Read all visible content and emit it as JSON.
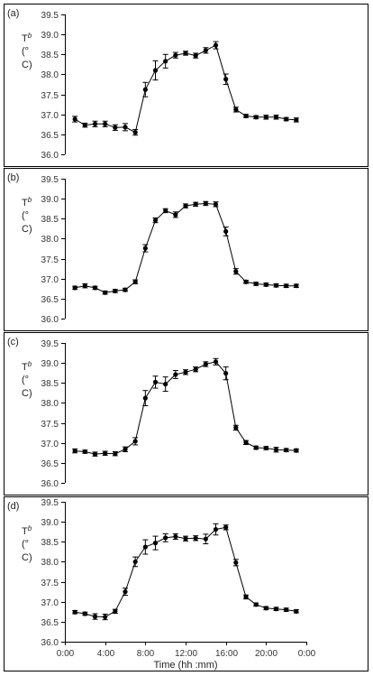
{
  "chart_data": [
    {
      "panel_label": "(a)",
      "type": "line",
      "ylabel": {
        "main": "T",
        "sub": "b",
        "unit_line1": "(°",
        "unit_line2": "C)"
      },
      "yticks": [
        "36.0",
        "36.5",
        "37.0",
        "37.5",
        "38.0",
        "38.5",
        "39.0",
        "39.5"
      ],
      "ylim": [
        36.0,
        39.5
      ],
      "series": [
        {
          "x": [
            1,
            2,
            3,
            4,
            5,
            6,
            7,
            8,
            9,
            10,
            11,
            12,
            13,
            14,
            15,
            16,
            17,
            18,
            19,
            20,
            21,
            22,
            23
          ],
          "values": [
            36.88,
            36.73,
            36.76,
            36.76,
            36.67,
            36.68,
            36.55,
            37.62,
            38.1,
            38.33,
            38.48,
            38.53,
            38.47,
            38.6,
            38.73,
            37.88,
            37.12,
            36.96,
            36.93,
            36.93,
            36.93,
            36.88,
            36.86
          ],
          "err": [
            0.07,
            0.05,
            0.07,
            0.07,
            0.07,
            0.09,
            0.07,
            0.18,
            0.24,
            0.17,
            0.07,
            0.05,
            0.06,
            0.07,
            0.09,
            0.13,
            0.06,
            0.04,
            0.04,
            0.05,
            0.05,
            0.04,
            0.05
          ]
        }
      ]
    },
    {
      "panel_label": "(b)",
      "type": "line",
      "ylabel": {
        "main": "T",
        "sub": "b",
        "unit_line1": "(°",
        "unit_line2": "C)"
      },
      "yticks": [
        "36.0",
        "36.5",
        "37.0",
        "37.5",
        "38.0",
        "38.5",
        "39.0",
        "39.5"
      ],
      "ylim": [
        36.0,
        39.5
      ],
      "series": [
        {
          "x": [
            1,
            2,
            3,
            4,
            5,
            6,
            7,
            8,
            9,
            10,
            11,
            12,
            13,
            14,
            15,
            16,
            17,
            18,
            19,
            20,
            21,
            22,
            23
          ],
          "values": [
            36.77,
            36.82,
            36.77,
            36.65,
            36.69,
            36.72,
            36.92,
            37.76,
            38.46,
            38.7,
            38.6,
            38.82,
            38.86,
            38.88,
            38.86,
            38.18,
            37.18,
            36.92,
            36.87,
            36.85,
            36.83,
            36.82,
            36.82
          ],
          "err": [
            0.04,
            0.05,
            0.04,
            0.04,
            0.04,
            0.04,
            0.05,
            0.09,
            0.06,
            0.05,
            0.07,
            0.05,
            0.05,
            0.05,
            0.06,
            0.11,
            0.07,
            0.04,
            0.04,
            0.04,
            0.04,
            0.04,
            0.04
          ]
        }
      ]
    },
    {
      "panel_label": "(c)",
      "type": "line",
      "ylabel": {
        "main": "T",
        "sub": "b",
        "unit_line1": "(°",
        "unit_line2": "C)"
      },
      "yticks": [
        "36.0",
        "36.5",
        "37.0",
        "37.5",
        "38.0",
        "38.5",
        "39.0",
        "39.5"
      ],
      "ylim": [
        36.0,
        39.5
      ],
      "series": [
        {
          "x": [
            1,
            2,
            3,
            4,
            5,
            6,
            7,
            8,
            9,
            10,
            11,
            12,
            13,
            14,
            15,
            16,
            17,
            18,
            19,
            20,
            21,
            22,
            23
          ],
          "values": [
            36.8,
            36.78,
            36.72,
            36.74,
            36.73,
            36.84,
            37.04,
            38.12,
            38.52,
            38.47,
            38.71,
            38.77,
            38.84,
            38.97,
            39.03,
            38.74,
            37.38,
            37.01,
            36.88,
            36.87,
            36.83,
            36.82,
            36.81
          ],
          "err": [
            0.05,
            0.04,
            0.05,
            0.05,
            0.05,
            0.06,
            0.09,
            0.19,
            0.15,
            0.18,
            0.1,
            0.06,
            0.06,
            0.06,
            0.08,
            0.16,
            0.06,
            0.05,
            0.04,
            0.04,
            0.06,
            0.04,
            0.04
          ]
        }
      ]
    },
    {
      "panel_label": "(d)",
      "type": "line",
      "ylabel": {
        "main": "T",
        "sub": "b",
        "unit_line1": "(°",
        "unit_line2": "C)"
      },
      "yticks": [
        "36.0",
        "36.5",
        "37.0",
        "37.5",
        "38.0",
        "38.5",
        "39.0",
        "39.5"
      ],
      "ylim": [
        36.0,
        39.5
      ],
      "xlabel": "Time (hh :mm)",
      "xticks": [
        {
          "pos": 0,
          "label": "0:00"
        },
        {
          "pos": 4,
          "label": "4:00"
        },
        {
          "pos": 8,
          "label": "8:00"
        },
        {
          "pos": 12,
          "label": "12:00"
        },
        {
          "pos": 16,
          "label": "16:00"
        },
        {
          "pos": 20,
          "label": "20:00"
        },
        {
          "pos": 24,
          "label": "0:00"
        }
      ],
      "series": [
        {
          "x": [
            1,
            2,
            3,
            4,
            5,
            6,
            7,
            8,
            9,
            10,
            11,
            12,
            13,
            14,
            15,
            16,
            17,
            18,
            19,
            20,
            21,
            22,
            23
          ],
          "values": [
            36.74,
            36.7,
            36.63,
            36.62,
            36.76,
            37.25,
            38.0,
            38.37,
            38.47,
            38.6,
            38.63,
            38.58,
            38.59,
            38.57,
            38.81,
            38.86,
            37.98,
            37.12,
            36.93,
            36.84,
            36.82,
            36.8,
            36.76
          ],
          "err": [
            0.04,
            0.04,
            0.07,
            0.07,
            0.05,
            0.09,
            0.12,
            0.18,
            0.17,
            0.1,
            0.07,
            0.06,
            0.06,
            0.12,
            0.14,
            0.06,
            0.08,
            0.05,
            0.04,
            0.04,
            0.04,
            0.04,
            0.04
          ]
        }
      ]
    }
  ]
}
